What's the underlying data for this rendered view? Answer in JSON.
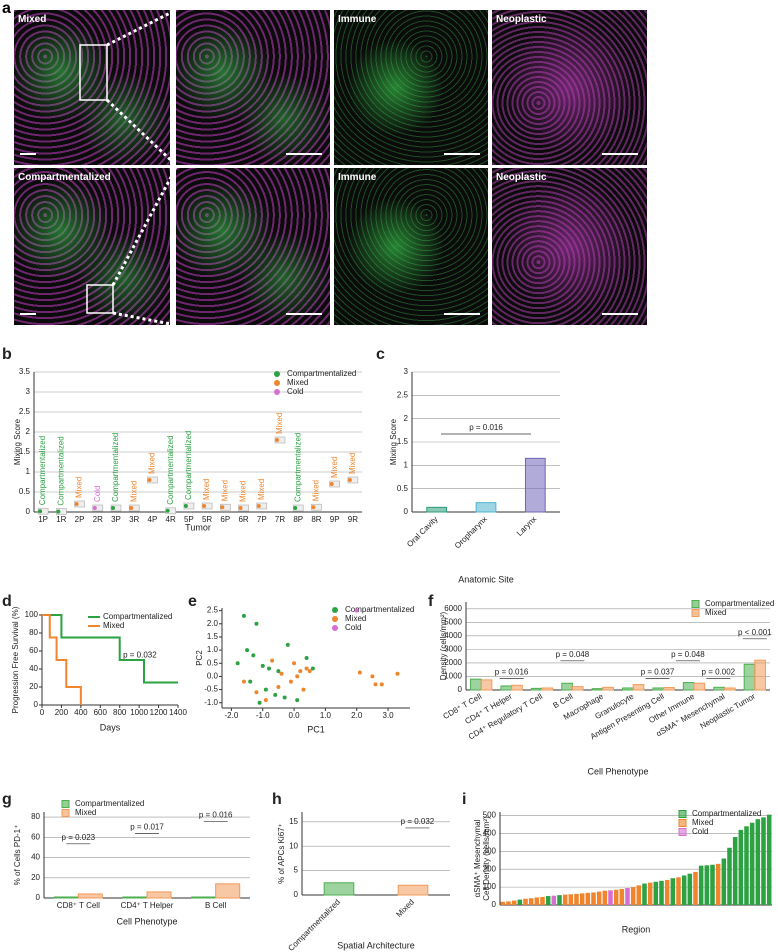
{
  "panel_letters": [
    "a",
    "b",
    "c",
    "d",
    "e",
    "f",
    "g",
    "h",
    "i"
  ],
  "image_labels": {
    "row1": [
      "Mixed",
      "Immune",
      "Neoplastic"
    ],
    "row2": [
      "Compartmentalized",
      "Immune",
      "Neoplastic"
    ]
  },
  "chart_data": [
    {
      "type": "box",
      "y_label": "Mixing Score",
      "x_label": "Tumor",
      "categories": [
        "1P",
        "1R",
        "2P",
        "2R",
        "3P",
        "3R",
        "4P",
        "4R",
        "5P",
        "5R",
        "6P",
        "6R",
        "7P",
        "7R",
        "8P",
        "8R",
        "9P",
        "9R"
      ],
      "series": [
        {
          "name": "Compartmentalized",
          "color": "#2ca243",
          "values": [
            0.02,
            0.01,
            null,
            null,
            0.1,
            null,
            null,
            0.03,
            0.15,
            null,
            null,
            null,
            null,
            null,
            0.1,
            null,
            null,
            null
          ]
        },
        {
          "name": "Mixed",
          "color": "#f0852d",
          "values": [
            null,
            null,
            0.2,
            null,
            null,
            0.1,
            0.8,
            null,
            null,
            0.15,
            0.12,
            0.1,
            0.15,
            1.8,
            null,
            0.12,
            0.7,
            0.8
          ]
        },
        {
          "name": "Cold",
          "color": "#d66fd2",
          "values": [
            null,
            null,
            null,
            0.1,
            null,
            null,
            null,
            null,
            null,
            null,
            null,
            null,
            null,
            null,
            null,
            null,
            null,
            null
          ]
        }
      ],
      "ylim": [
        0,
        3.5
      ],
      "yticks": [
        0,
        0.5,
        1,
        1.5,
        2,
        2.5,
        3,
        3.5
      ],
      "grid": true,
      "legend": "upper right"
    },
    {
      "type": "box",
      "y_label": "Mixing Score",
      "x_label": "Anatomic Site",
      "categories": [
        "Oral Cavity",
        "Oropharynx",
        "Larynx"
      ],
      "values": [
        0.1,
        0.2,
        1.15
      ],
      "colors": [
        "#2e9b7a",
        "#4fb3d0",
        "#6f66b8"
      ],
      "ylim": [
        0,
        3
      ],
      "yticks": [
        0,
        0.5,
        1,
        1.5,
        2,
        2.5,
        3
      ],
      "grid": true,
      "annotations": [
        "p = 0.016"
      ]
    },
    {
      "type": "line",
      "y_label": "Progression Free Survival (%)",
      "x_label": "Days",
      "series": [
        {
          "name": "Compartmentalized",
          "color": "#2ca243",
          "x": [
            0,
            200,
            200,
            800,
            800,
            1050,
            1050,
            1400
          ],
          "values": [
            100,
            100,
            75,
            75,
            50,
            50,
            25,
            25
          ]
        },
        {
          "name": "Mixed",
          "color": "#f0852d",
          "x": [
            0,
            80,
            80,
            150,
            150,
            250,
            250,
            400,
            400
          ],
          "values": [
            100,
            100,
            75,
            75,
            50,
            50,
            20,
            20,
            0
          ]
        }
      ],
      "xlim": [
        0,
        1400
      ],
      "xticks": [
        0,
        200,
        400,
        600,
        800,
        1000,
        1200,
        1400
      ],
      "ylim": [
        0,
        100
      ],
      "yticks": [
        0,
        20,
        40,
        60,
        80,
        100
      ],
      "grid": false,
      "legend": "upper right",
      "annotations": [
        "p = 0.032"
      ]
    },
    {
      "type": "scatter",
      "y_label": "PC2",
      "x_label": "PC1",
      "series": [
        {
          "name": "Compartmentalized",
          "color": "#2ca243",
          "x": [
            -1.6,
            -1.5,
            -1.3,
            -1.2,
            -1.0,
            -0.9,
            -0.8,
            -0.6,
            -0.5,
            -0.3,
            -1.8,
            -1.1,
            0.4,
            0.6,
            -0.2,
            -1.4,
            0.1
          ],
          "values": [
            2.3,
            1.0,
            0.8,
            2.0,
            0.4,
            -0.5,
            0.3,
            -0.7,
            0.2,
            -0.8,
            0.5,
            -1.0,
            0.7,
            0.3,
            1.2,
            -0.2,
            -0.9
          ]
        },
        {
          "name": "Mixed",
          "color": "#f0852d",
          "x": [
            2.5,
            2.6,
            2.8,
            3.3,
            2.1,
            0.4,
            0.2,
            0.3,
            0.0,
            -0.1,
            -0.4,
            -0.5,
            -1.6,
            -1.2,
            -0.7,
            0.5,
            -0.9,
            0.1
          ],
          "values": [
            0.0,
            -0.3,
            -0.3,
            0.1,
            0.15,
            0.3,
            0.2,
            -0.5,
            0.5,
            -0.2,
            0.1,
            -0.4,
            -0.2,
            -0.6,
            0.6,
            0.2,
            -0.9,
            0.0
          ]
        },
        {
          "name": "Cold",
          "color": "#d66fd2",
          "x": [
            2.0
          ],
          "values": [
            2.5
          ]
        }
      ],
      "xlim": [
        -2.3,
        3.7
      ],
      "xticks": [
        {
          "value": -2,
          "label": "-2.0"
        },
        {
          "value": -1,
          "label": "-1.0"
        },
        {
          "value": 0,
          "label": "0.0"
        },
        {
          "value": 1,
          "label": "1.0"
        },
        {
          "value": 2,
          "label": "2.0"
        },
        {
          "value": 3,
          "label": "3.0"
        }
      ],
      "ylim": [
        -1.2,
        2.6
      ],
      "yticks": [
        {
          "value": -1,
          "label": "-1.0"
        },
        {
          "value": -0.5,
          "label": "-0.5"
        },
        {
          "value": 0,
          "label": "0.0"
        },
        {
          "value": 0.5,
          "label": "0.5"
        },
        {
          "value": 1,
          "label": "1.0"
        },
        {
          "value": 1.5,
          "label": "1.5"
        },
        {
          "value": 2,
          "label": "2.0"
        },
        {
          "value": 2.5,
          "label": "2.5"
        }
      ],
      "grid": false,
      "legend": "upper right"
    },
    {
      "type": "bar",
      "y_label": "Density (cells/mm²)",
      "x_label": "Cell Phenotype",
      "categories": [
        "CD8⁺ T Cell",
        "CD4⁺ T Helper",
        "CD4⁺ Regulatory T Cell",
        "B Cell",
        "Macrophage",
        "Granulocyte",
        "Antigen Presenting Cell",
        "Other Immune",
        "αSMA⁺ Mesenchymal",
        "Neoplastic Tumor"
      ],
      "series": [
        {
          "name": "Compartmentalized",
          "color": "#4caf50",
          "values": [
            800,
            300,
            120,
            500,
            100,
            150,
            150,
            550,
            200,
            1900
          ]
        },
        {
          "name": "Mixed",
          "color": "#f39a5a",
          "values": [
            750,
            350,
            150,
            250,
            200,
            400,
            180,
            500,
            150,
            2200
          ]
        }
      ],
      "ylim": [
        0,
        6500
      ],
      "yticks": [
        0,
        1000,
        2000,
        3000,
        4000,
        5000,
        6000
      ],
      "grid": true,
      "legend": "upper right",
      "annotations": [
        "p = 0.016",
        "p = 0.048",
        "p = 0.037",
        "p = 0.048",
        "p = 0.002",
        "p < 0.001"
      ]
    },
    {
      "type": "bar",
      "y_label": "% of Cells PD-1⁺",
      "x_label": "Cell Phenotype",
      "categories": [
        "CD8⁺ T Cell",
        "CD4⁺ T Helper",
        "B Cell"
      ],
      "series": [
        {
          "name": "Compartmentalized",
          "color": "#4caf50",
          "values": [
            1,
            1,
            1
          ]
        },
        {
          "name": "Mixed",
          "color": "#f39a5a",
          "values": [
            4,
            6,
            14
          ]
        }
      ],
      "ylim": [
        0,
        85
      ],
      "yticks": [
        0,
        20,
        40,
        60,
        80
      ],
      "grid": true,
      "legend": "upper left",
      "annotations": [
        "p = 0.023",
        "p = 0.017",
        "p = 0.016"
      ]
    },
    {
      "type": "box",
      "y_label": "% of APCs Ki67⁺",
      "x_label": "Spatial Architecture",
      "categories": [
        "Compartmentalized",
        "Mixed"
      ],
      "values": [
        2.5,
        2
      ],
      "colors": [
        "#4caf50",
        "#f39a5a"
      ],
      "ylim": [
        0,
        17
      ],
      "yticks": [
        0,
        5,
        10,
        15
      ],
      "grid": true,
      "annotations": [
        "p = 0.032"
      ]
    },
    {
      "type": "bar",
      "stacked": true,
      "y_label": [
        "αSMA⁺ Mesenchymal",
        "Cell Density (cells/mm²)"
      ],
      "x_label": "Region",
      "series": [
        {
          "name": "Compartmentalized",
          "color": "#2ca243",
          "values": [
            null,
            null,
            null,
            30,
            null,
            null,
            null,
            null,
            50,
            null,
            55,
            null,
            null,
            null,
            null,
            null,
            null,
            null,
            null,
            null,
            null,
            null,
            null,
            null,
            null,
            120,
            null,
            130,
            135,
            null,
            150,
            null,
            165,
            175,
            null,
            220,
            222,
            225,
            null,
            260,
            320,
            380,
            420,
            440,
            460,
            480,
            490,
            505
          ]
        },
        {
          "name": "Mixed",
          "color": "#f0852d",
          "values": [
            18,
            20,
            25,
            null,
            35,
            38,
            42,
            45,
            null,
            null,
            null,
            58,
            60,
            62,
            65,
            68,
            70,
            75,
            80,
            null,
            85,
            90,
            null,
            100,
            110,
            null,
            125,
            null,
            null,
            140,
            null,
            155,
            null,
            null,
            185,
            null,
            null,
            null,
            230,
            null,
            null,
            null,
            null,
            null,
            null,
            null,
            null,
            null
          ]
        },
        {
          "name": "Cold",
          "color": "#d66fd2",
          "values": [
            null,
            null,
            null,
            null,
            null,
            null,
            null,
            null,
            null,
            52,
            null,
            null,
            null,
            null,
            null,
            null,
            null,
            null,
            null,
            82,
            null,
            null,
            95,
            null,
            null,
            null,
            null,
            null,
            null,
            null,
            null,
            null,
            null,
            null,
            null,
            null,
            null,
            null,
            null,
            null,
            null,
            null,
            null,
            null,
            null,
            null,
            null,
            null
          ]
        }
      ],
      "ylim": [
        0,
        520
      ],
      "yticks": [
        0,
        100,
        200,
        300,
        400,
        500
      ],
      "grid": true,
      "legend": "upper right"
    }
  ]
}
